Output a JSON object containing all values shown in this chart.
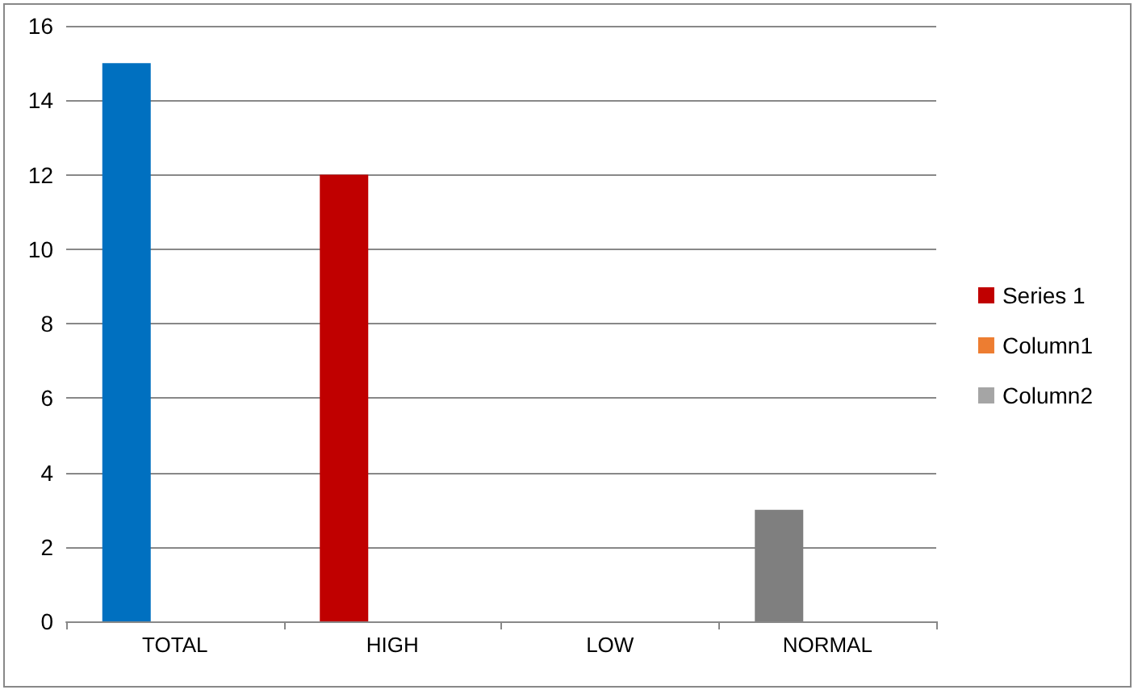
{
  "chart_data": {
    "type": "bar",
    "categories": [
      "TOTAL",
      "HIGH",
      "LOW",
      "NORMAL"
    ],
    "series": [
      {
        "name": "Series 1",
        "color": "#c00000",
        "colors": [
          "#0070c0",
          "#c00000",
          "#c00000",
          "#7f7f7f"
        ],
        "values": [
          15,
          12,
          null,
          3
        ]
      },
      {
        "name": "Column1",
        "color": "#ed7d31",
        "values": [
          null,
          null,
          null,
          null
        ]
      },
      {
        "name": "Column2",
        "color": "#a5a5a5",
        "values": [
          null,
          null,
          null,
          null
        ]
      }
    ],
    "ylim": [
      0,
      16
    ],
    "yticks": [
      0,
      2,
      4,
      6,
      8,
      10,
      12,
      14,
      16
    ],
    "grid": "y",
    "legend": "right"
  }
}
